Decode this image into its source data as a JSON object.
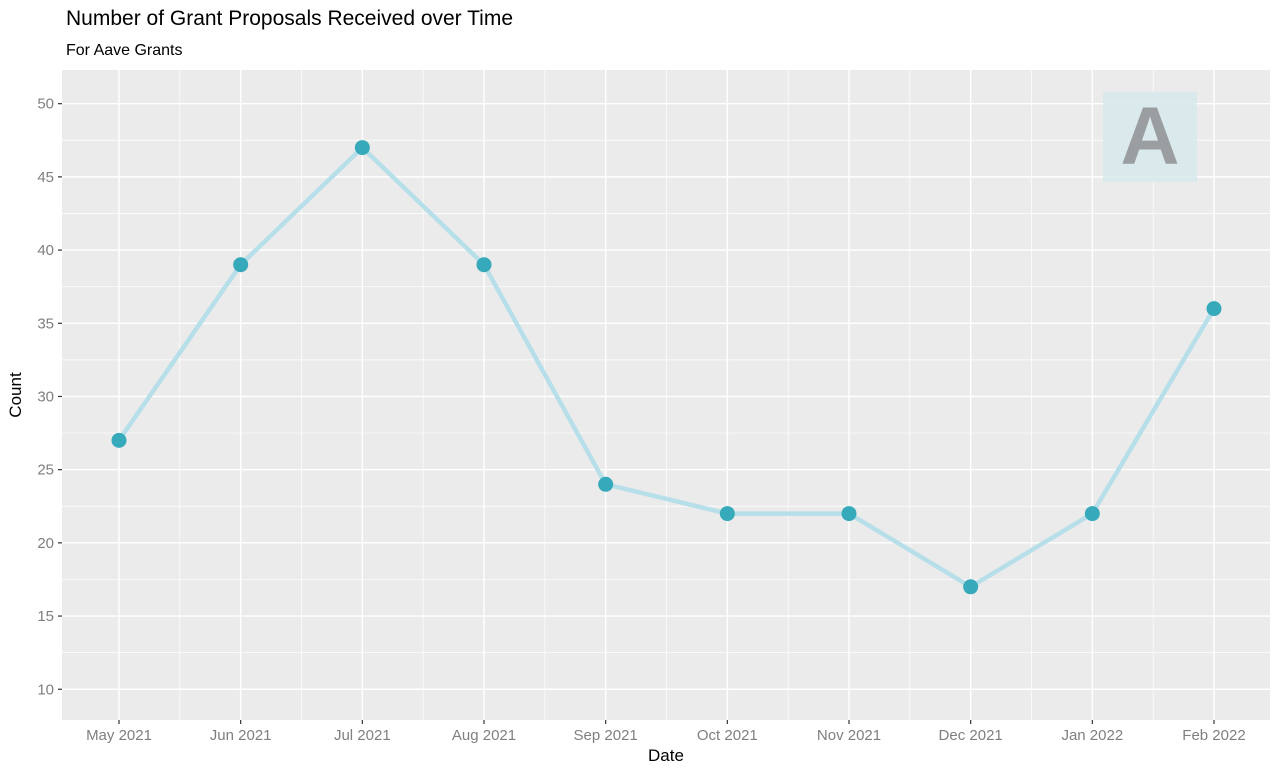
{
  "chart_data": {
    "type": "line",
    "title": "Number of Grant Proposals Received over Time",
    "subtitle": "For Aave Grants",
    "xlabel": "Date",
    "ylabel": "Count",
    "categories": [
      "May 2021",
      "Jun 2021",
      "Jul 2021",
      "Aug 2021",
      "Sep 2021",
      "Oct 2021",
      "Nov 2021",
      "Dec 2021",
      "Jan 2022",
      "Feb 2022"
    ],
    "values": [
      27,
      39,
      47,
      39,
      24,
      22,
      22,
      17,
      22,
      36
    ],
    "y_ticks": [
      10,
      15,
      20,
      25,
      30,
      35,
      40,
      45,
      50
    ],
    "ylim": [
      7.9,
      52.3
    ],
    "grid": true,
    "legend": false,
    "colors": {
      "line": "#B7DFE9",
      "point": "#36A9BA",
      "panel_bg": "#EBEBEB",
      "grid": "#FFFFFF",
      "tick_label": "#7F7F7F",
      "axis_title": "#000000",
      "tick_mark": "#333333"
    }
  },
  "watermark": {
    "letter": "A"
  }
}
